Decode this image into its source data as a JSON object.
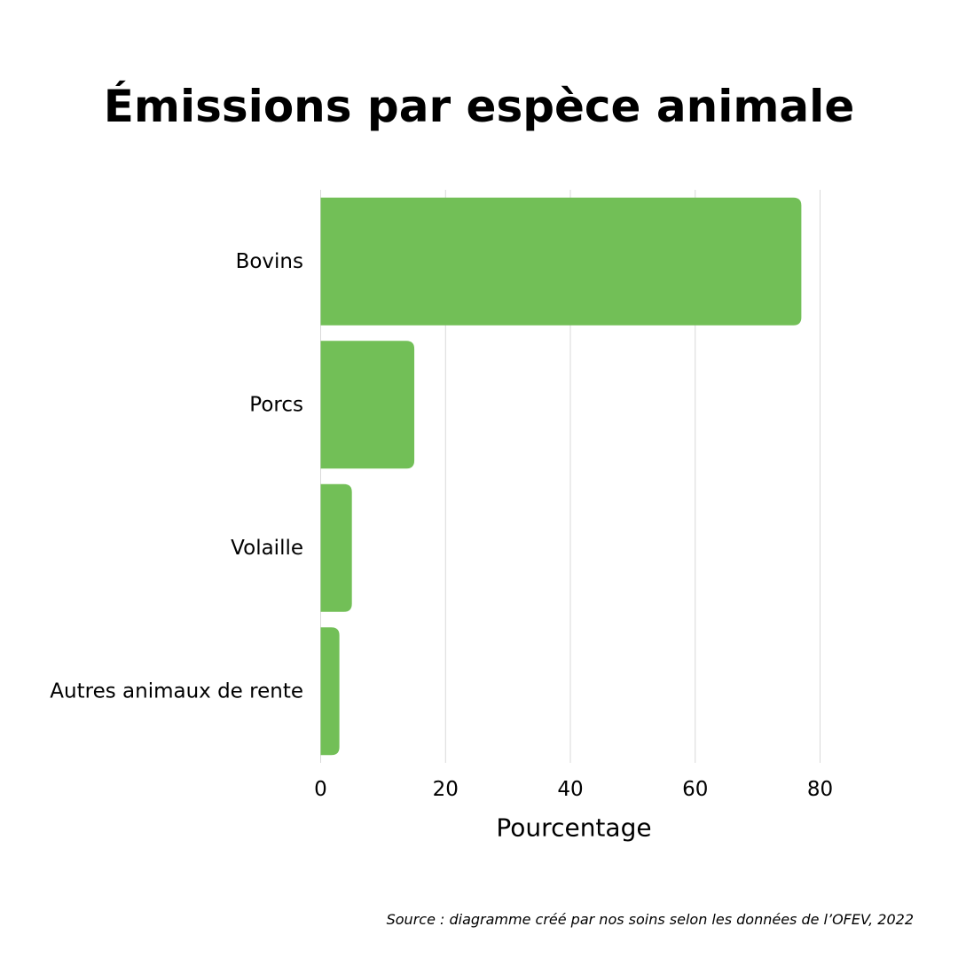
{
  "chart_data": {
    "type": "bar",
    "orientation": "horizontal",
    "title": "Émissions par espèce animale",
    "categories": [
      "Bovins",
      "Porcs",
      "Volaille",
      "Autres animaux de rente"
    ],
    "values": [
      77,
      15,
      5,
      3
    ],
    "xlabel": "Pourcentage",
    "ylabel": "",
    "xlim": [
      0,
      80
    ],
    "xticks": [
      "0",
      "20",
      "40",
      "60",
      "80"
    ],
    "grid": true,
    "legend": "none",
    "bar_color": "#72bf57",
    "grid_color": "#d9d9d9"
  },
  "source": "Source : diagramme créé par nos soins selon les données de l’OFEV, 2022"
}
